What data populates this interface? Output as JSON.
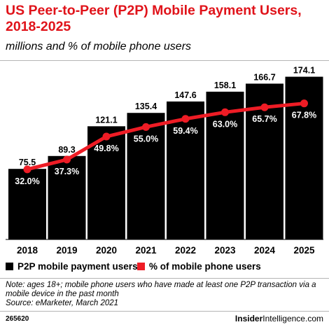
{
  "title": "US Peer-to-Peer (P2P) Mobile Payment Users, 2018-2025",
  "subtitle": "millions and % of mobile phone users",
  "chart_data": {
    "type": "bar",
    "categories": [
      "2018",
      "2019",
      "2020",
      "2021",
      "2022",
      "2023",
      "2024",
      "2025"
    ],
    "series": [
      {
        "name": "P2P mobile payment users",
        "type": "bar",
        "values": [
          75.5,
          89.3,
          121.1,
          135.4,
          147.6,
          158.1,
          166.7,
          174.1
        ],
        "labels": [
          "75.5",
          "89.3",
          "121.1",
          "135.4",
          "147.6",
          "158.1",
          "166.7",
          "174.1"
        ],
        "color": "#000000"
      },
      {
        "name": "% of mobile phone users",
        "type": "line",
        "values": [
          32.0,
          37.3,
          49.8,
          55.0,
          59.4,
          63.0,
          65.7,
          67.8
        ],
        "labels": [
          "32.0%",
          "37.3%",
          "49.8%",
          "55.0%",
          "59.4%",
          "63.0%",
          "65.7%",
          "67.8%"
        ],
        "color": "#ee1c25"
      }
    ],
    "legend_position": "bottom-left",
    "grid": false
  },
  "legend": [
    {
      "label": "P2P mobile payment users",
      "color": "#000000"
    },
    {
      "label": "% of mobile phone users",
      "color": "#ee1c25"
    }
  ],
  "note": "Note: ages 18+; mobile phone users who have made at least one P2P transaction via a mobile device in the past month",
  "source": "Source: eMarketer, March 2021",
  "chart_id": "265620",
  "brand": {
    "bold": "Insider",
    "light": "Intelligence",
    "suffix": ".com"
  }
}
